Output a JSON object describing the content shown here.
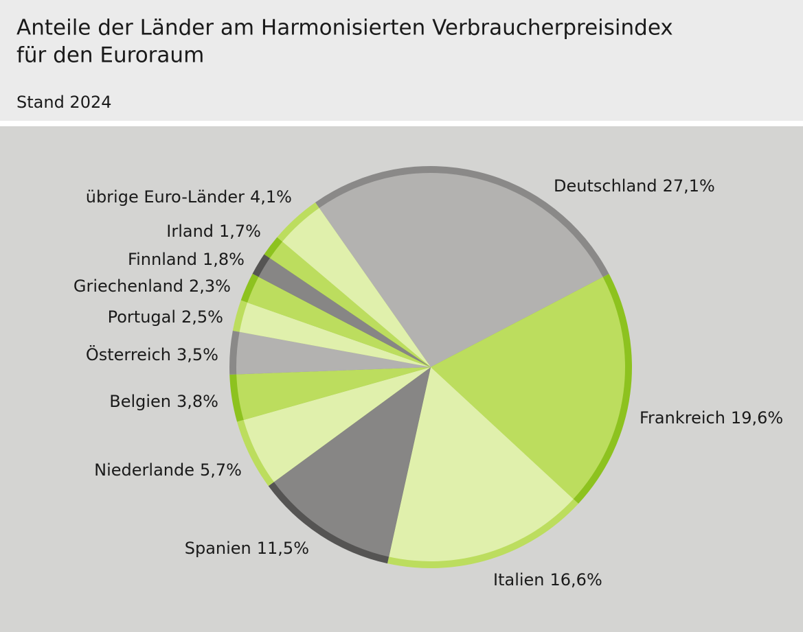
{
  "chart_data": {
    "type": "pie",
    "title": [
      "Anteile der Länder am Harmonisierten Verbraucherpreisindex",
      "für den Euroraum"
    ],
    "subtitle": "Stand 2024",
    "categories": [
      "Deutschland",
      "Frankreich",
      "Italien",
      "Spanien",
      "Niederlande",
      "Belgien",
      "Österreich",
      "Portugal",
      "Griechenland",
      "Finnland",
      "Irland",
      "übrige Euro-Länder"
    ],
    "values": [
      27.1,
      19.6,
      16.6,
      11.5,
      5.7,
      3.8,
      3.5,
      2.5,
      2.3,
      1.8,
      1.7,
      4.1
    ],
    "value_labels": [
      "27,1%",
      "19,6%",
      "16,6%",
      "11,5%",
      "5,7%",
      "3,8%",
      "3,5%",
      "2,5%",
      "2,3%",
      "1,8%",
      "1,7%",
      "4,1%"
    ],
    "colors": [
      "#b3b2b0",
      "#bcdd5e",
      "#e0f0ac",
      "#878685",
      "#e0f0ac",
      "#bcdd5e",
      "#b3b2b0",
      "#e0f0ac",
      "#bcdd5e",
      "#878685",
      "#bcdd5e",
      "#e0f0ac"
    ],
    "rim_colors": [
      "#8a8988",
      "#8dc21f",
      "#bcdd5e",
      "#555453",
      "#bcdd5e",
      "#8dc21f",
      "#8a8988",
      "#bcdd5e",
      "#8dc21f",
      "#555453",
      "#8dc21f",
      "#bcdd5e"
    ]
  }
}
